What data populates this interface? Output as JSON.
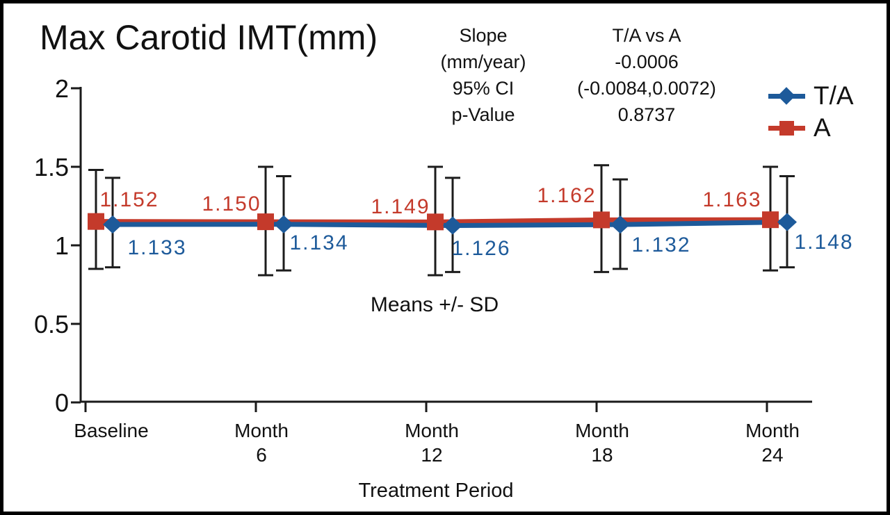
{
  "title": "Max Carotid IMT(mm)",
  "stats": {
    "left_lines": [
      "Slope",
      "(mm/year)",
      "95% CI",
      "p-Value"
    ],
    "right_lines": [
      "T/A vs A",
      "-0.0006",
      "(-0.0084,0.0072)",
      "0.8737"
    ]
  },
  "legend": {
    "items": [
      {
        "label": "T/A",
        "color": "#1d5a9a",
        "marker": "diamond"
      },
      {
        "label": "A",
        "color": "#c43a2b",
        "marker": "square"
      }
    ]
  },
  "note": "Means +/- SD",
  "chart_data": {
    "type": "line",
    "title": "Max Carotid IMT(mm)",
    "xlabel": "Treatment Period",
    "annotation": "Means +/- SD",
    "categories": [
      "Baseline",
      "Month 6",
      "Month 12",
      "Month 18",
      "Month 24"
    ],
    "x_tick_lines": [
      [
        "Baseline"
      ],
      [
        "Month",
        "6"
      ],
      [
        "Month",
        "12"
      ],
      [
        "Month",
        "18"
      ],
      [
        "Month",
        "24"
      ]
    ],
    "y_ticks": [
      {
        "label": "0",
        "value": 0
      },
      {
        "label": "0.5",
        "value": 0.5
      },
      {
        "label": "1",
        "value": 1
      },
      {
        "label": "1.5",
        "value": 1.5
      },
      {
        "label": "2",
        "value": 2
      }
    ],
    "ylim": [
      0,
      2
    ],
    "grid": false,
    "legend_position": "top-right",
    "series": [
      {
        "name": "A",
        "color": "#c43a2b",
        "marker": "square",
        "values": [
          1.152,
          1.15,
          1.149,
          1.162,
          1.163
        ],
        "point_labels": [
          "1.152",
          "1.150",
          "1.149",
          "1.162",
          "1.163"
        ],
        "sd_upper": [
          1.48,
          1.5,
          1.5,
          1.51,
          1.5
        ],
        "sd_lower": [
          0.85,
          0.81,
          0.81,
          0.83,
          0.84
        ]
      },
      {
        "name": "T/A",
        "color": "#1d5a9a",
        "marker": "diamond",
        "values": [
          1.133,
          1.134,
          1.126,
          1.132,
          1.148
        ],
        "point_labels": [
          "1.133",
          "1.134",
          "1.126",
          "1.132",
          "1.148"
        ],
        "sd_upper": [
          1.43,
          1.44,
          1.43,
          1.42,
          1.44
        ],
        "sd_lower": [
          0.86,
          0.84,
          0.83,
          0.85,
          0.86
        ]
      }
    ]
  }
}
